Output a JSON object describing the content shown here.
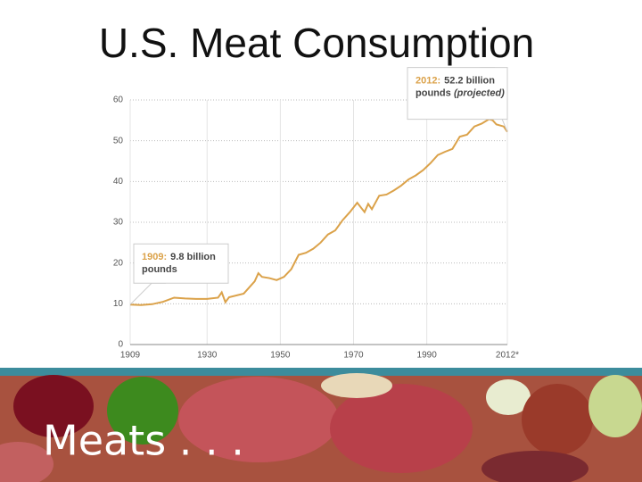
{
  "chart_data": {
    "type": "line",
    "title": "U.S. Meat Consumption",
    "x": [
      1909,
      1912,
      1915,
      1918,
      1921,
      1924,
      1927,
      1930,
      1933,
      1934,
      1935,
      1936,
      1940,
      1943,
      1944,
      1945,
      1947,
      1949,
      1951,
      1953,
      1955,
      1957,
      1959,
      1961,
      1963,
      1965,
      1967,
      1969,
      1971,
      1973,
      1974,
      1975,
      1977,
      1979,
      1981,
      1983,
      1985,
      1987,
      1989,
      1991,
      1993,
      1995,
      1997,
      1999,
      2001,
      2003,
      2005,
      2007,
      2008,
      2009,
      2011,
      2012
    ],
    "values": [
      9.8,
      9.7,
      9.9,
      10.5,
      11.5,
      11.3,
      11.2,
      11.2,
      11.5,
      12.8,
      10.4,
      11.6,
      12.5,
      15.5,
      17.5,
      16.6,
      16.3,
      15.8,
      16.6,
      18.5,
      22.0,
      22.5,
      23.5,
      25.0,
      27.0,
      28.0,
      30.5,
      32.5,
      34.8,
      32.5,
      34.5,
      33.2,
      36.5,
      36.8,
      37.8,
      39.0,
      40.5,
      41.5,
      42.8,
      44.5,
      46.5,
      47.3,
      48.0,
      51.0,
      51.5,
      53.5,
      54.2,
      55.3,
      55.0,
      54.0,
      53.5,
      52.2
    ],
    "color": "#dba24a",
    "xlim": [
      1909,
      2012
    ],
    "ylim": [
      0,
      60
    ],
    "xticks": [
      1909,
      1930,
      1950,
      1970,
      1990,
      {
        "value": 2012,
        "label": "2012*"
      }
    ],
    "yticks": [
      0,
      10,
      20,
      30,
      40,
      50,
      60
    ],
    "grid": true,
    "annotations": [
      {
        "x": 1909,
        "y": 9.8,
        "lead": "1909:",
        "lines": [
          "9.8 billion",
          "pounds"
        ]
      },
      {
        "x": 2012,
        "y": 52.2,
        "lead": "2012:",
        "lines": [
          "52.2 billion",
          "pounds",
          "(projected)"
        ]
      }
    ]
  },
  "banner": {
    "text": "Meats . . ."
  }
}
